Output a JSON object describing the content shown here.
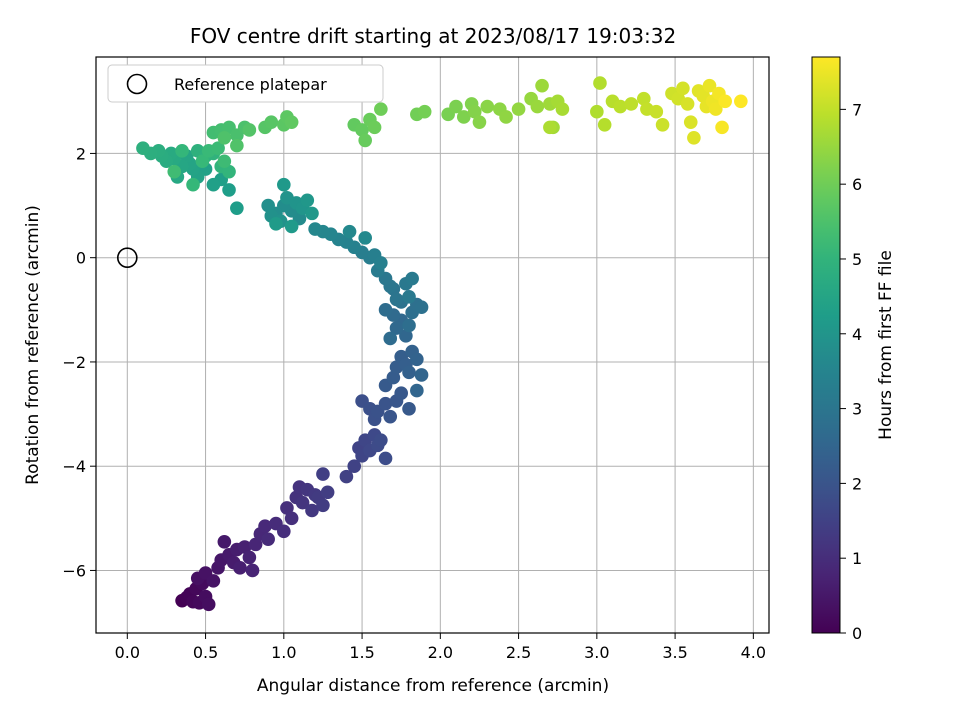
{
  "chart_data": {
    "type": "scatter",
    "title": "FOV centre drift starting at 2023/08/17 19:03:32",
    "xlabel": "Angular distance from reference (arcmin)",
    "ylabel": "Rotation from reference (arcmin)",
    "xlim": [
      -0.2,
      4.1
    ],
    "ylim": [
      -7.2,
      3.85
    ],
    "x_ticks": [
      0.0,
      0.5,
      1.0,
      1.5,
      2.0,
      2.5,
      3.0,
      3.5,
      4.0
    ],
    "x_tick_labels": [
      "0.0",
      "0.5",
      "1.0",
      "1.5",
      "2.0",
      "2.5",
      "3.0",
      "3.5",
      "4.0"
    ],
    "y_ticks": [
      -6,
      -4,
      -2,
      0,
      2
    ],
    "y_tick_labels": [
      "−6",
      "−4",
      "−2",
      "0",
      "2"
    ],
    "grid": true,
    "legend": {
      "position": "top-left",
      "entries": [
        "Reference platepar"
      ]
    },
    "reference_point": {
      "x": 0.0,
      "y": 0.0,
      "marker": "open-circle"
    },
    "colorbar": {
      "label": "Hours from first FF file",
      "colormap": "viridis",
      "range": [
        0,
        7.7
      ],
      "ticks": [
        0,
        1,
        2,
        3,
        4,
        5,
        6,
        7
      ],
      "tick_labels": [
        "0",
        "1",
        "2",
        "3",
        "4",
        "5",
        "6",
        "7"
      ]
    },
    "series": [
      {
        "columns": [
          "x",
          "y",
          "hours"
        ],
        "points": [
          [
            0.35,
            -6.58
          ],
          [
            0.38,
            -6.52
          ],
          [
            0.4,
            -6.45
          ],
          [
            0.42,
            -6.6
          ],
          [
            0.44,
            -6.35
          ],
          [
            0.46,
            -6.62
          ],
          [
            0.48,
            -6.25
          ],
          [
            0.5,
            -6.5
          ],
          [
            0.52,
            -6.65
          ],
          [
            0.45,
            -6.15
          ],
          [
            0.5,
            -6.05
          ],
          [
            0.55,
            -6.2
          ],
          [
            0.58,
            -5.95
          ],
          [
            0.6,
            -5.8
          ],
          [
            0.62,
            -5.45
          ],
          [
            0.65,
            -5.7
          ],
          [
            0.68,
            -5.85
          ],
          [
            0.7,
            -5.6
          ],
          [
            0.72,
            -5.95
          ],
          [
            0.75,
            -5.55
          ],
          [
            0.78,
            -5.75
          ],
          [
            0.8,
            -6.0
          ],
          [
            0.82,
            -5.5
          ],
          [
            0.85,
            -5.3
          ],
          [
            0.88,
            -5.15
          ],
          [
            0.9,
            -5.4
          ],
          [
            0.95,
            -5.1
          ],
          [
            1.0,
            -5.25
          ],
          [
            1.02,
            -4.8
          ],
          [
            1.05,
            -5.0
          ],
          [
            1.08,
            -4.6
          ],
          [
            1.1,
            -4.4
          ],
          [
            1.12,
            -4.7
          ],
          [
            1.15,
            -4.45
          ],
          [
            1.18,
            -4.85
          ],
          [
            1.2,
            -4.55
          ],
          [
            1.22,
            -4.6
          ],
          [
            1.25,
            -4.75
          ],
          [
            1.28,
            -4.5
          ],
          [
            1.25,
            -4.15
          ],
          [
            1.4,
            -4.2
          ],
          [
            1.45,
            -4.0
          ],
          [
            1.48,
            -3.65
          ],
          [
            1.5,
            -3.8
          ],
          [
            1.52,
            -3.5
          ],
          [
            1.55,
            -3.7
          ],
          [
            1.58,
            -3.4
          ],
          [
            1.6,
            -3.6
          ],
          [
            1.62,
            -3.5
          ],
          [
            1.65,
            -3.85
          ],
          [
            1.5,
            -2.75
          ],
          [
            1.55,
            -2.9
          ],
          [
            1.58,
            -3.1
          ],
          [
            1.6,
            -2.95
          ],
          [
            1.65,
            -2.8
          ],
          [
            1.68,
            -3.05
          ],
          [
            1.72,
            -2.75
          ],
          [
            1.75,
            -2.6
          ],
          [
            1.8,
            -2.9
          ],
          [
            1.65,
            -2.45
          ],
          [
            1.7,
            -2.3
          ],
          [
            1.72,
            -2.1
          ],
          [
            1.75,
            -1.9
          ],
          [
            1.78,
            -2.05
          ],
          [
            1.8,
            -2.2
          ],
          [
            1.82,
            -1.8
          ],
          [
            1.85,
            -1.95
          ],
          [
            1.88,
            -2.25
          ],
          [
            1.85,
            -2.55
          ],
          [
            1.78,
            -1.5
          ],
          [
            1.75,
            -1.2
          ],
          [
            1.72,
            -1.35
          ],
          [
            1.7,
            -1.1
          ],
          [
            1.68,
            -1.55
          ],
          [
            1.65,
            -1.0
          ],
          [
            1.8,
            -1.3
          ],
          [
            1.82,
            -1.05
          ],
          [
            1.85,
            -0.9
          ],
          [
            1.88,
            -0.95
          ],
          [
            1.75,
            -0.85
          ],
          [
            1.7,
            -0.6
          ],
          [
            1.72,
            -0.8
          ],
          [
            1.68,
            -0.55
          ],
          [
            1.65,
            -0.4
          ],
          [
            1.78,
            -0.5
          ],
          [
            1.8,
            -0.75
          ],
          [
            1.82,
            -0.4
          ],
          [
            1.6,
            -0.25
          ],
          [
            1.55,
            0.0
          ],
          [
            1.5,
            0.1
          ],
          [
            1.58,
            0.05
          ],
          [
            1.62,
            -0.1
          ],
          [
            1.45,
            0.2
          ],
          [
            1.4,
            0.3
          ],
          [
            1.35,
            0.35
          ],
          [
            1.3,
            0.45
          ],
          [
            1.25,
            0.5
          ],
          [
            1.2,
            0.55
          ],
          [
            1.42,
            0.5
          ],
          [
            1.52,
            0.38
          ],
          [
            1.1,
            0.75
          ],
          [
            1.05,
            0.9
          ],
          [
            1.0,
            1.0
          ],
          [
            0.95,
            0.85
          ],
          [
            0.9,
            1.0
          ],
          [
            0.92,
            0.8
          ],
          [
            0.98,
            0.7
          ],
          [
            1.02,
            1.15
          ],
          [
            1.08,
            1.05
          ],
          [
            1.12,
            0.95
          ],
          [
            1.15,
            1.1
          ],
          [
            1.18,
            0.85
          ],
          [
            1.0,
            1.4
          ],
          [
            1.05,
            0.6
          ],
          [
            0.95,
            0.65
          ],
          [
            0.7,
            0.95
          ],
          [
            0.65,
            1.3
          ],
          [
            0.6,
            1.5
          ],
          [
            0.55,
            1.4
          ],
          [
            0.5,
            1.7
          ],
          [
            0.45,
            1.55
          ],
          [
            0.42,
            1.7
          ],
          [
            0.4,
            1.8
          ],
          [
            0.38,
            1.95
          ],
          [
            0.35,
            1.75
          ],
          [
            0.32,
            1.55
          ],
          [
            0.3,
            1.9
          ],
          [
            0.28,
            2.0
          ],
          [
            0.25,
            1.85
          ],
          [
            0.22,
            1.95
          ],
          [
            0.2,
            2.05
          ],
          [
            0.15,
            2.0
          ],
          [
            0.1,
            2.1
          ],
          [
            0.45,
            2.05
          ],
          [
            0.5,
            1.95
          ],
          [
            0.55,
            2.0
          ],
          [
            0.6,
            1.75
          ],
          [
            0.65,
            1.65
          ],
          [
            0.35,
            2.05
          ],
          [
            0.42,
            1.4
          ],
          [
            0.48,
            1.85
          ],
          [
            0.52,
            2.05
          ],
          [
            0.58,
            2.1
          ],
          [
            0.62,
            1.85
          ],
          [
            0.3,
            1.65
          ],
          [
            0.55,
            2.4
          ],
          [
            0.6,
            2.45
          ],
          [
            0.65,
            2.5
          ],
          [
            0.7,
            2.35
          ],
          [
            0.75,
            2.5
          ],
          [
            0.62,
            2.3
          ],
          [
            0.7,
            2.15
          ],
          [
            0.78,
            2.45
          ],
          [
            0.88,
            2.5
          ],
          [
            0.92,
            2.6
          ],
          [
            1.0,
            2.55
          ],
          [
            1.02,
            2.7
          ],
          [
            1.05,
            2.6
          ],
          [
            1.45,
            2.55
          ],
          [
            1.5,
            2.45
          ],
          [
            1.52,
            2.25
          ],
          [
            1.55,
            2.65
          ],
          [
            1.58,
            2.5
          ],
          [
            1.62,
            2.85
          ],
          [
            1.85,
            2.75
          ],
          [
            1.9,
            2.8
          ],
          [
            2.05,
            2.75
          ],
          [
            2.1,
            2.9
          ],
          [
            2.15,
            2.7
          ],
          [
            2.2,
            2.95
          ],
          [
            2.22,
            2.8
          ],
          [
            2.25,
            2.6
          ],
          [
            2.3,
            2.9
          ],
          [
            2.38,
            2.85
          ],
          [
            2.42,
            2.7
          ],
          [
            2.5,
            2.85
          ],
          [
            2.58,
            3.05
          ],
          [
            2.62,
            2.9
          ],
          [
            2.65,
            3.3
          ],
          [
            2.7,
            2.95
          ],
          [
            2.72,
            2.5
          ],
          [
            2.75,
            3.0
          ],
          [
            2.78,
            2.85
          ],
          [
            2.7,
            2.5
          ],
          [
            3.0,
            2.8
          ],
          [
            3.02,
            3.35
          ],
          [
            3.05,
            2.55
          ],
          [
            3.1,
            3.0
          ],
          [
            3.15,
            2.9
          ],
          [
            3.22,
            2.95
          ],
          [
            3.3,
            3.05
          ],
          [
            3.32,
            2.85
          ],
          [
            3.38,
            2.8
          ],
          [
            3.42,
            2.55
          ],
          [
            3.48,
            3.15
          ],
          [
            3.52,
            3.05
          ],
          [
            3.55,
            3.25
          ],
          [
            3.58,
            2.95
          ],
          [
            3.6,
            2.6
          ],
          [
            3.62,
            2.3
          ],
          [
            3.65,
            3.2
          ],
          [
            3.68,
            3.1
          ],
          [
            3.7,
            2.9
          ],
          [
            3.72,
            3.3
          ],
          [
            3.74,
            3.0
          ],
          [
            3.76,
            2.85
          ],
          [
            3.78,
            3.15
          ],
          [
            3.8,
            2.5
          ],
          [
            3.82,
            3.0
          ],
          [
            3.92,
            3.0
          ]
        ]
      }
    ]
  }
}
